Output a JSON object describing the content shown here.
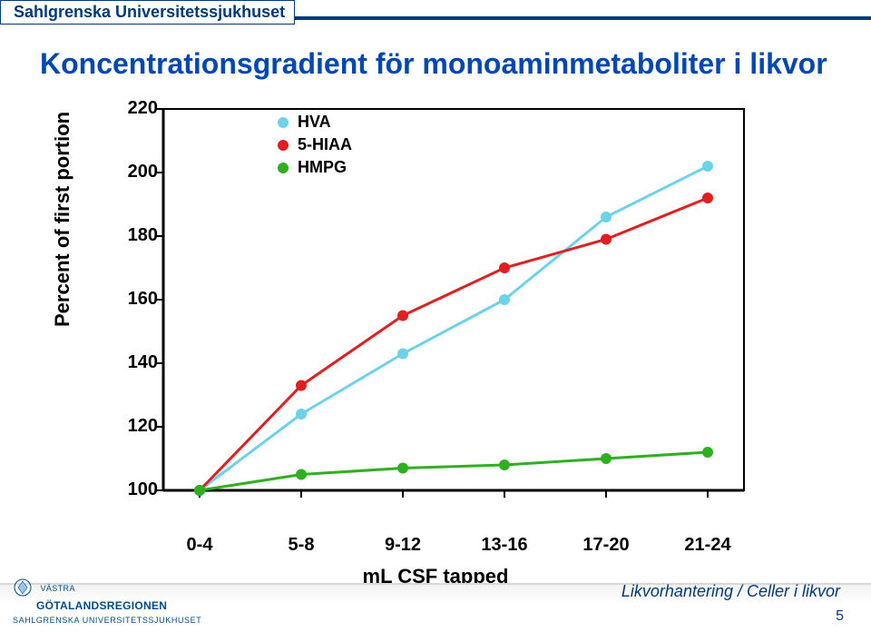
{
  "header": {
    "org": "Sahlgrenska Universitetssjukhuset",
    "stripe_color": "#003a78"
  },
  "title": "Koncentrationsgradient för monoaminmetaboliter i likvor",
  "title_color": "#0047b3",
  "chart": {
    "type": "line",
    "background_color": "#ffffff",
    "axis_color": "#000000",
    "axis_width": 3,
    "tick_fontsize": 20,
    "label_fontsize": 22,
    "ylabel": "Percent of first portion",
    "xlabel": "mL CSF tapped",
    "ylim": [
      100,
      220
    ],
    "ytick_step": 20,
    "yticks": [
      100,
      120,
      140,
      160,
      180,
      200,
      220
    ],
    "xcategories": [
      "0-4",
      "5-8",
      "9-12",
      "13-16",
      "17-20",
      "21-24"
    ],
    "marker_radius": 6,
    "line_width": 3,
    "series": [
      {
        "name": "HVA",
        "color": "#6dd2e8",
        "values": [
          100,
          124,
          143,
          160,
          186,
          202
        ]
      },
      {
        "name": "5-HIAA",
        "color": "#e02020",
        "values": [
          100,
          133,
          155,
          170,
          179,
          192
        ]
      },
      {
        "name": "HMPG",
        "color": "#2fb020",
        "values": [
          100,
          105,
          107,
          108,
          110,
          112
        ]
      }
    ],
    "legend": {
      "pos": "top-left-inset",
      "fontsize": 18,
      "items": [
        "HVA",
        "5-HIAA",
        "HMPG"
      ]
    }
  },
  "footer": {
    "breadcrumb": "Likvorhantering / Celler i likvor",
    "page_number": "5",
    "logo_line1": "VÄSTRA",
    "logo_line2": "GÖTALANDSREGIONEN",
    "logo_line3": "SAHLGRENSKA UNIVERSITETSSJUKHUSET",
    "logo_color": "#024b87"
  }
}
